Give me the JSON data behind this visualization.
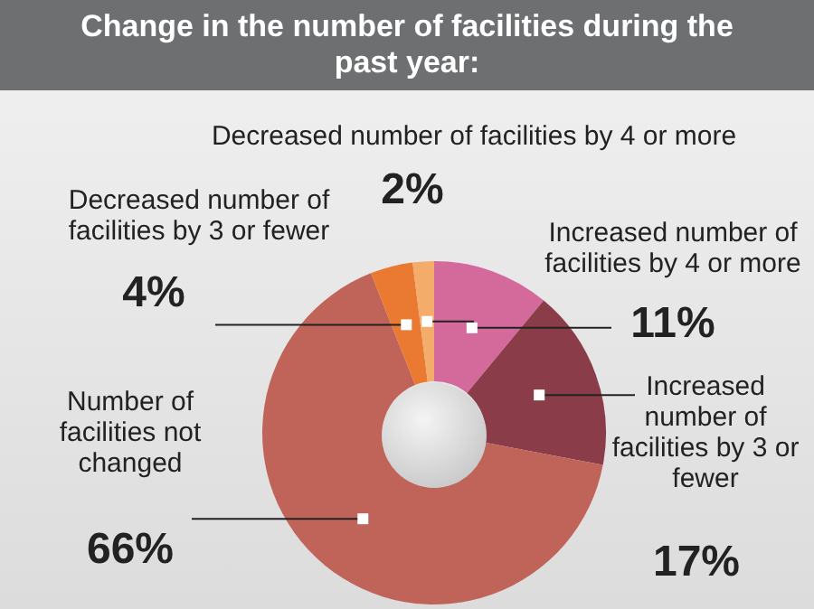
{
  "chart_data": {
    "type": "donut",
    "title": "Change in the number of facilities during the past year:",
    "categories": [
      "Increased number of facilities by 4 or more",
      "Increased number of facilities by 3 or fewer",
      "Number of facilities not changed",
      "Decreased number of facilities by 3 or fewer",
      "Decreased number of facilities by 4 or more"
    ],
    "values": [
      11,
      17,
      66,
      4,
      2
    ],
    "colors": [
      "#d46a9c",
      "#8a3c48",
      "#c0645a",
      "#ea7a32",
      "#f4ac6a"
    ],
    "value_labels": [
      "11%",
      "17%",
      "66%",
      "4%",
      "2%"
    ],
    "legend": false
  }
}
